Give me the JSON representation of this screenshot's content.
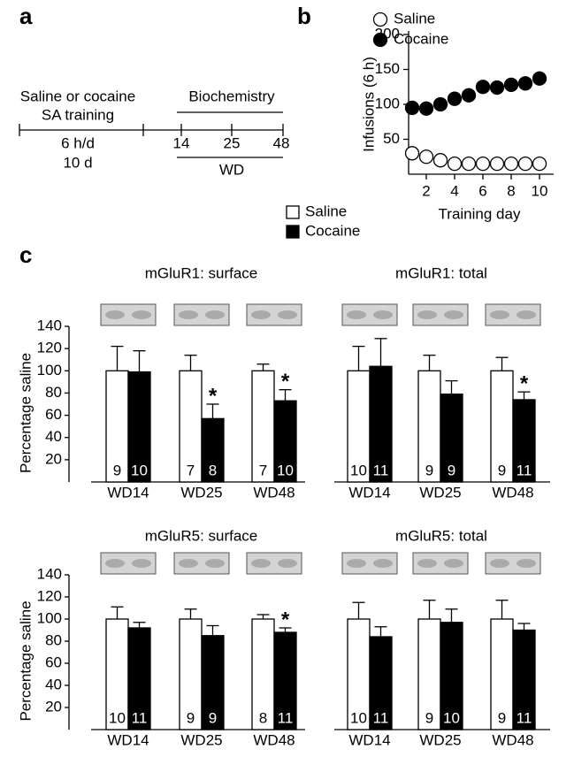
{
  "panel_labels": [
    "a",
    "b",
    "c"
  ],
  "timeline": {
    "training": [
      "Saline or cocaine",
      "SA training"
    ],
    "schedule": [
      "6 h/d",
      "10 d"
    ],
    "biochemistry": "Biochemistry",
    "days": [
      "14",
      "25",
      "48"
    ],
    "wd": "WD"
  },
  "chart_data": [
    {
      "type": "scatter",
      "x": [
        1,
        2,
        3,
        4,
        5,
        6,
        7,
        8,
        9,
        10
      ],
      "series": [
        {
          "name": "Saline",
          "color": "#ffffff",
          "values": [
            30,
            25,
            20,
            15,
            15,
            15,
            15,
            15,
            15,
            15
          ]
        },
        {
          "name": "Cocaine",
          "color": "#000000",
          "values": [
            95,
            94,
            100,
            108,
            113,
            125,
            124,
            128,
            130,
            137
          ]
        }
      ],
      "xlim": [
        0.5,
        11
      ],
      "xticks": [
        2,
        4,
        6,
        8,
        10
      ],
      "ylim": [
        0,
        200
      ],
      "yticks": [
        50,
        100,
        150,
        200
      ],
      "xlabel": "Training day",
      "ylabel": "Infusions (6 h)",
      "legend": "top-left"
    },
    {
      "type": "bar",
      "title": "mGluR1: surface",
      "categories": [
        "WD14",
        "WD25",
        "WD48"
      ],
      "ylabel": "Percentage saline",
      "ylim": [
        0,
        140
      ],
      "yticks": [
        20,
        40,
        60,
        80,
        100,
        120,
        140
      ],
      "series": [
        {
          "name": "Saline",
          "color": "#ffffff",
          "values": [
            100,
            100,
            100
          ],
          "errors": [
            22,
            14,
            6
          ],
          "n": [
            9,
            7,
            7
          ],
          "markers": [
            null,
            null,
            null
          ]
        },
        {
          "name": "Cocaine",
          "color": "#000000",
          "values": [
            99,
            57,
            73
          ],
          "errors": [
            19,
            13,
            10
          ],
          "n": [
            10,
            8,
            10
          ],
          "markers": [
            null,
            "*",
            "*"
          ]
        }
      ]
    },
    {
      "type": "bar",
      "title": "mGluR1: total",
      "categories": [
        "WD14",
        "WD25",
        "WD48"
      ],
      "ylim": [
        0,
        140
      ],
      "series": [
        {
          "name": "Saline",
          "color": "#ffffff",
          "values": [
            100,
            100,
            100
          ],
          "errors": [
            22,
            14,
            12
          ],
          "n": [
            10,
            9,
            9
          ],
          "markers": [
            null,
            null,
            null
          ]
        },
        {
          "name": "Cocaine",
          "color": "#000000",
          "values": [
            104,
            79,
            74
          ],
          "errors": [
            25,
            12,
            7
          ],
          "n": [
            11,
            9,
            11
          ],
          "markers": [
            null,
            null,
            "*"
          ]
        }
      ]
    },
    {
      "type": "bar",
      "title": "mGluR5: surface",
      "categories": [
        "WD14",
        "WD25",
        "WD48"
      ],
      "ylabel": "Percentage saline",
      "ylim": [
        0,
        140
      ],
      "yticks": [
        20,
        40,
        60,
        80,
        100,
        120,
        140
      ],
      "series": [
        {
          "name": "Saline",
          "color": "#ffffff",
          "values": [
            100,
            100,
            100
          ],
          "errors": [
            11,
            9,
            4
          ],
          "n": [
            10,
            9,
            8
          ],
          "markers": [
            null,
            null,
            null
          ]
        },
        {
          "name": "Cocaine",
          "color": "#000000",
          "values": [
            92,
            85,
            88
          ],
          "errors": [
            5,
            9,
            4
          ],
          "n": [
            11,
            9,
            11
          ],
          "markers": [
            null,
            null,
            "*"
          ]
        }
      ]
    },
    {
      "type": "bar",
      "title": "mGluR5: total",
      "categories": [
        "WD14",
        "WD25",
        "WD48"
      ],
      "ylim": [
        0,
        140
      ],
      "series": [
        {
          "name": "Saline",
          "color": "#ffffff",
          "values": [
            100,
            100,
            100
          ],
          "errors": [
            15,
            17,
            17
          ],
          "n": [
            10,
            9,
            9
          ],
          "markers": [
            null,
            null,
            null
          ]
        },
        {
          "name": "Cocaine",
          "color": "#000000",
          "values": [
            84,
            97,
            90
          ],
          "errors": [
            9,
            12,
            6
          ],
          "n": [
            11,
            10,
            11
          ],
          "markers": [
            null,
            null,
            null
          ]
        }
      ]
    }
  ]
}
